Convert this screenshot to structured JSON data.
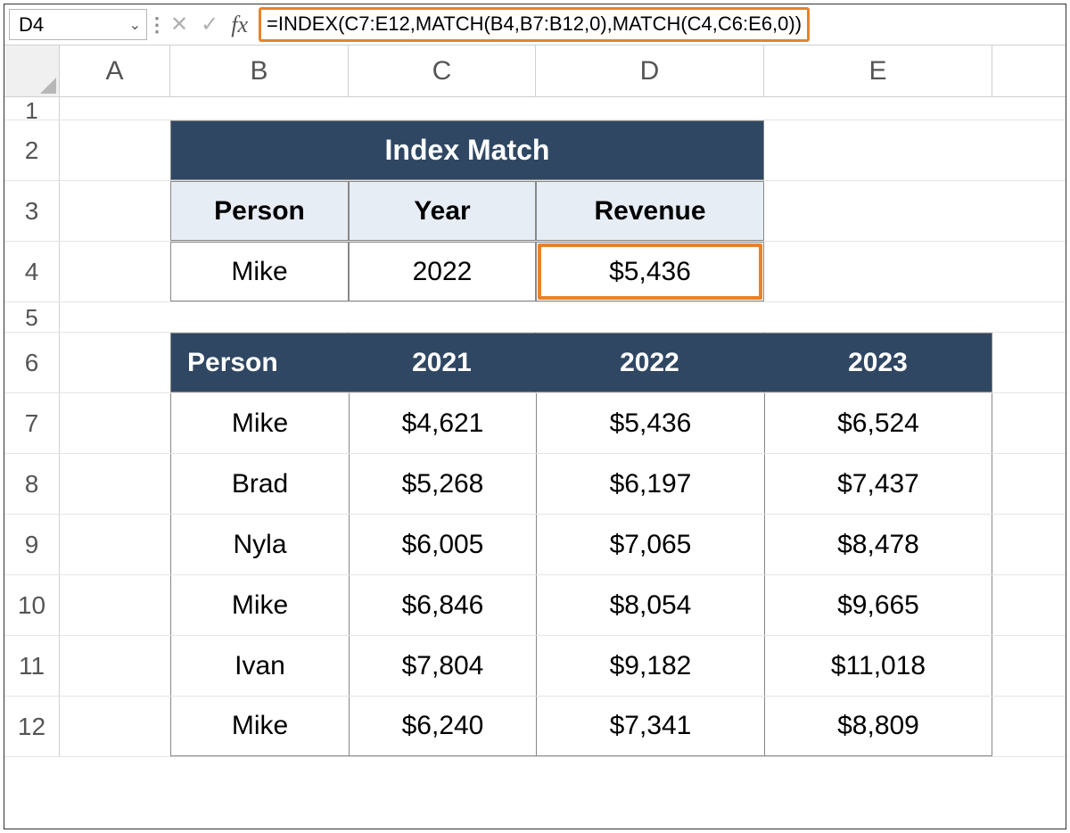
{
  "formula_bar": {
    "cell_ref": "D4",
    "formula": "=INDEX(C7:E12,MATCH(B4,B7:B12,0),MATCH(C4,C6:E6,0))",
    "highlight_color": "#e8822a"
  },
  "columns": [
    "A",
    "B",
    "C",
    "D",
    "E"
  ],
  "row_labels": {
    "r1": "1",
    "r2": "2",
    "r3": "3",
    "r4": "4",
    "r5": "5",
    "r6": "6",
    "r7": "7",
    "r8": "8",
    "r9": "9",
    "r10": "10",
    "r11": "11",
    "r12": "12"
  },
  "index_match": {
    "title": "Index Match",
    "headers": {
      "person": "Person",
      "year": "Year",
      "revenue": "Revenue"
    },
    "values": {
      "person": "Mike",
      "year": "2022",
      "revenue": "$5,436"
    },
    "title_bg": "#2f4763",
    "header_bg": "#e7edf5"
  },
  "data_table": {
    "headers": [
      "Person",
      "2021",
      "2022",
      "2023"
    ],
    "rows": [
      [
        "Mike",
        "$4,621",
        "$5,436",
        "$6,524"
      ],
      [
        "Brad",
        "$5,268",
        "$6,197",
        "$7,437"
      ],
      [
        "Nyla",
        "$6,005",
        "$7,065",
        "$8,478"
      ],
      [
        "Mike",
        "$6,846",
        "$8,054",
        "$9,665"
      ],
      [
        "Ivan",
        "$7,804",
        "$9,182",
        "$11,018"
      ],
      [
        "Mike",
        "$6,240",
        "$7,341",
        "$8,809"
      ]
    ],
    "header_bg": "#2f4763"
  }
}
